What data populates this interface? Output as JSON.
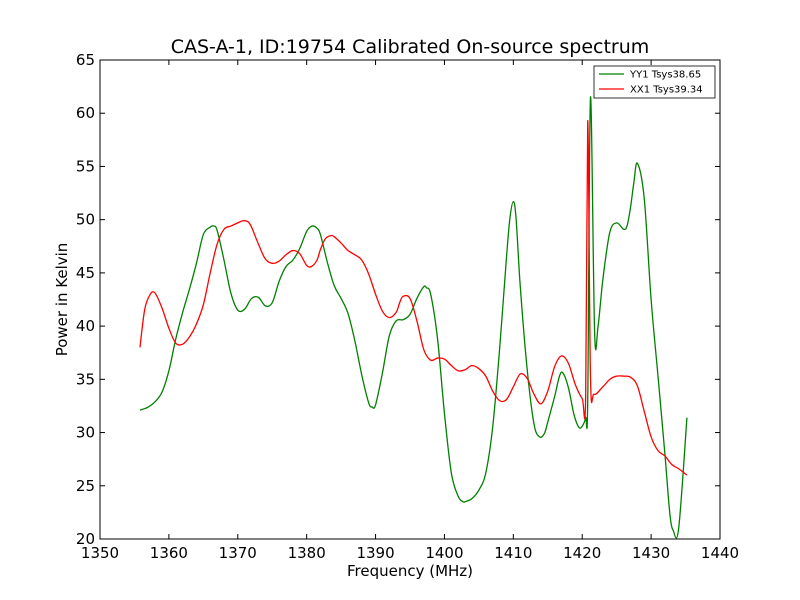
{
  "chart_data": {
    "type": "line",
    "title": "CAS-A-1, ID:19754 Calibrated On-source spectrum",
    "xlabel": "Frequency (MHz)",
    "ylabel": "Power in Kelvin",
    "xlim": [
      1350,
      1440
    ],
    "ylim": [
      20,
      65
    ],
    "xticks": [
      1350,
      1360,
      1370,
      1380,
      1390,
      1400,
      1410,
      1420,
      1430,
      1440
    ],
    "yticks": [
      20,
      25,
      30,
      35,
      40,
      45,
      50,
      55,
      60,
      65
    ],
    "grid": false,
    "legend_position": "top-right",
    "series": [
      {
        "name": "YY1 Tsys38.65",
        "color": "#008000",
        "x": [
          1355.8,
          1357,
          1358,
          1359,
          1360,
          1361,
          1362,
          1363,
          1364,
          1365,
          1366,
          1366.5,
          1367,
          1368,
          1369,
          1370,
          1371,
          1372,
          1373,
          1374,
          1375,
          1376,
          1377,
          1378,
          1379,
          1380,
          1380.8,
          1381.5,
          1382,
          1383,
          1384,
          1385,
          1386,
          1387,
          1388,
          1389,
          1389.5,
          1390,
          1391,
          1392,
          1393,
          1394,
          1395,
          1396,
          1397,
          1397.4,
          1398,
          1399,
          1400,
          1401,
          1402,
          1402.7,
          1403,
          1404,
          1405,
          1406,
          1407,
          1408,
          1409,
          1409.5,
          1410,
          1410.4,
          1411,
          1412,
          1413,
          1413.8,
          1414.5,
          1415,
          1416,
          1416.7,
          1417.2,
          1418,
          1418.8,
          1419.5,
          1420,
          1420.5,
          1420.8,
          1421.2,
          1421.8,
          1422.3,
          1423,
          1424,
          1425,
          1426,
          1426.5,
          1427,
          1427.5,
          1428,
          1429,
          1430,
          1431,
          1432,
          1432.7,
          1433.2,
          1434,
          1435.2
        ],
        "values": [
          32.1,
          32.4,
          32.9,
          33.8,
          35.8,
          38.8,
          41.3,
          43.5,
          45.9,
          48.6,
          49.3,
          49.4,
          49.0,
          46.2,
          43.1,
          41.5,
          41.6,
          42.6,
          42.7,
          41.9,
          42.2,
          44.2,
          45.6,
          46.2,
          47.3,
          48.9,
          49.4,
          49.2,
          48.6,
          46.0,
          43.8,
          42.6,
          41.2,
          38.6,
          35.4,
          32.8,
          32.4,
          32.6,
          35.6,
          39.1,
          40.5,
          40.6,
          41.1,
          42.6,
          43.7,
          43.6,
          43.0,
          38.8,
          31.8,
          26.2,
          24.0,
          23.5,
          23.5,
          23.8,
          24.6,
          26.2,
          30.5,
          37.8,
          46.4,
          50.1,
          51.7,
          50.1,
          43.8,
          36.0,
          30.8,
          29.6,
          29.9,
          31.0,
          33.4,
          35.3,
          35.6,
          34.2,
          31.7,
          30.5,
          30.6,
          31.4,
          33.0,
          61.5,
          39.4,
          40.0,
          44.4,
          48.8,
          49.7,
          49.1,
          49.4,
          51.1,
          53.5,
          55.3,
          52.0,
          42.5,
          35.3,
          28.0,
          22.5,
          20.8,
          21.0,
          31.4
        ]
      },
      {
        "name": "XX1 Tsys39.34",
        "color": "#ff0000",
        "x": [
          1355.8,
          1356.5,
          1357.3,
          1358,
          1359,
          1360,
          1361,
          1362,
          1363,
          1364,
          1365,
          1366,
          1367,
          1368,
          1369,
          1370,
          1370.8,
          1371.5,
          1372,
          1373,
          1374,
          1375,
          1376,
          1377,
          1378,
          1379,
          1380,
          1380.7,
          1381.5,
          1382,
          1382.7,
          1383.5,
          1384,
          1385,
          1386,
          1387,
          1388,
          1389,
          1390,
          1391,
          1392,
          1393,
          1393.5,
          1394,
          1395,
          1396,
          1397,
          1398,
          1399,
          1400,
          1401,
          1402,
          1403,
          1404,
          1405,
          1406,
          1407,
          1408,
          1409,
          1410,
          1411,
          1412,
          1413,
          1414,
          1415,
          1416,
          1417,
          1418,
          1419,
          1420,
          1420.5,
          1420.8,
          1421.2,
          1421.7,
          1423,
          1424,
          1425,
          1426,
          1427,
          1428,
          1429,
          1430,
          1431,
          1432,
          1433,
          1434,
          1435.2
        ],
        "values": [
          38.0,
          41.6,
          43.0,
          43.1,
          41.7,
          39.8,
          38.4,
          38.3,
          39.0,
          40.2,
          42.0,
          45.0,
          47.7,
          49.1,
          49.4,
          49.7,
          49.9,
          49.8,
          49.3,
          47.7,
          46.3,
          45.9,
          46.1,
          46.7,
          47.1,
          46.8,
          45.7,
          45.6,
          46.2,
          47.2,
          48.2,
          48.5,
          48.4,
          47.8,
          47.1,
          46.7,
          46.2,
          44.9,
          43.0,
          41.4,
          40.8,
          41.3,
          42.2,
          42.8,
          42.6,
          40.5,
          37.8,
          36.8,
          37.0,
          36.9,
          36.3,
          35.8,
          35.9,
          36.3,
          36.0,
          35.3,
          33.9,
          33.0,
          33.1,
          34.3,
          35.5,
          35.1,
          33.6,
          32.7,
          33.9,
          36.2,
          37.2,
          36.5,
          34.5,
          33.2,
          33.3,
          59.3,
          35.2,
          33.6,
          34.3,
          35.0,
          35.3,
          35.3,
          35.2,
          34.4,
          32.0,
          29.6,
          28.3,
          27.8,
          27.0,
          26.6,
          26.0
        ]
      }
    ]
  }
}
